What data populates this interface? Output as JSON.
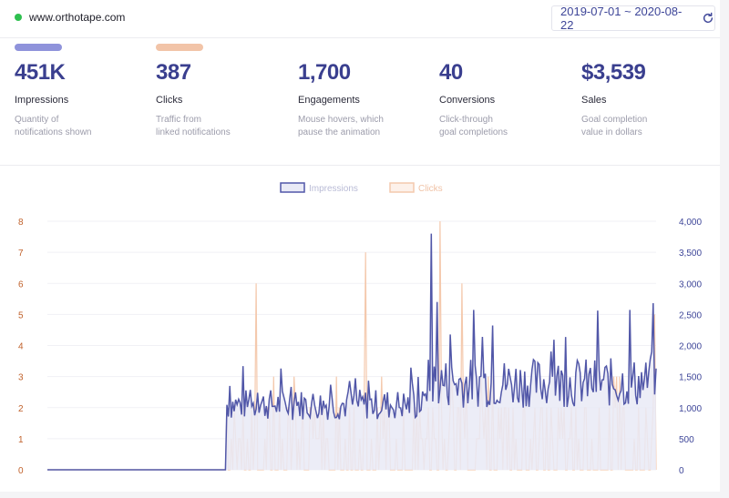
{
  "header": {
    "site_url": "www.orthotape.com",
    "date_range": "2019-07-01 ~ 2020-08-22",
    "status_color": "#2ec04f",
    "refresh_icon": "refresh-icon"
  },
  "metrics": [
    {
      "value": "451K",
      "label": "Impressions",
      "desc1": "Quantity of",
      "desc2": "notifications shown",
      "color": "#8f93db"
    },
    {
      "value": "387",
      "label": "Clicks",
      "desc1": "Traffic from",
      "desc2": "linked notifications",
      "color": "#f2c4a8"
    },
    {
      "value": "1,700",
      "label": "Engagements",
      "desc1": "Mouse hovers, which",
      "desc2": "pause the animation",
      "color": ""
    },
    {
      "value": "40",
      "label": "Conversions",
      "desc1": "Click-through",
      "desc2": "goal completions",
      "color": ""
    },
    {
      "value": "$3,539",
      "label": "Sales",
      "desc1": "Goal completion",
      "desc2": "value in dollars",
      "color": ""
    }
  ],
  "chart_data": {
    "type": "line",
    "legend": [
      "Impressions",
      "Clicks"
    ],
    "legend_position": "top-center",
    "series": [
      {
        "name": "Impressions",
        "axis": "right",
        "color": "#5157a8",
        "fill": "#e9eaf6",
        "segments": [
          {
            "from": "2019-07-01",
            "to": "2019-10-31",
            "value": 0
          },
          {
            "from": "2019-11-01",
            "to": "2020-03-15",
            "typical": [
              750,
              1300
            ],
            "peak": 1500
          },
          {
            "from": "2020-03-16",
            "to": "2020-08-22",
            "typical": [
              900,
              1800
            ],
            "peak": 3800
          }
        ]
      },
      {
        "name": "Clicks",
        "axis": "left",
        "color": "#f4c9ad",
        "fill": "",
        "segments": [
          {
            "from": "2019-07-01",
            "to": "2019-10-31",
            "value": 0
          },
          {
            "from": "2019-11-01",
            "to": "2020-08-22",
            "typical": [
              0,
              2
            ],
            "peaks": [
              6,
              7,
              8,
              6,
              5
            ]
          }
        ]
      }
    ],
    "y_left": {
      "ticks": [
        "0",
        "1",
        "2",
        "3",
        "4",
        "5",
        "6",
        "7",
        "8"
      ],
      "range": [
        0,
        8
      ],
      "color": "#c0612b"
    },
    "y_right": {
      "ticks": [
        "0",
        "500",
        "1,000",
        "1,500",
        "2,000",
        "2,500",
        "3,000",
        "3,500",
        "4,000"
      ],
      "range": [
        0,
        4000
      ],
      "color": "#3d4598"
    },
    "x": {
      "start": "2019-07-01",
      "end": "2020-08-22"
    },
    "grid": true
  }
}
